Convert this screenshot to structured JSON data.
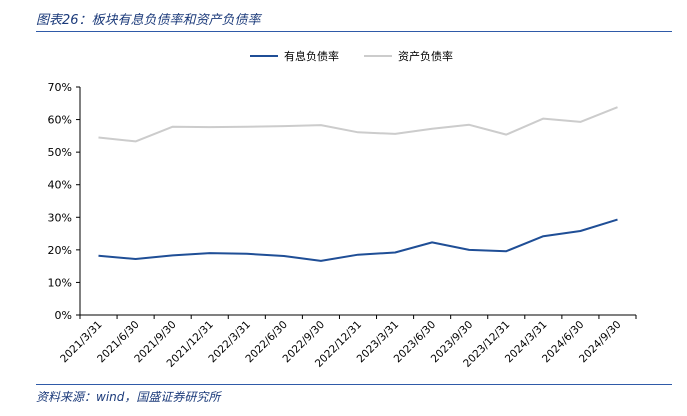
{
  "figure": {
    "title": "图表26：板块有息负债率和资产负债率",
    "source": "资料来源：wind，国盛证券研究所"
  },
  "colors": {
    "accent": "#2f5aa8",
    "series_interest_debt": "#1f4e96",
    "series_asset_liability": "#cccccc"
  },
  "chart_data": {
    "type": "line",
    "title": "",
    "xlabel": "",
    "ylabel": "",
    "legend_position": "top-center",
    "grid": false,
    "ylim": [
      0,
      70
    ],
    "yticks": [
      0,
      10,
      20,
      30,
      40,
      50,
      60,
      70
    ],
    "ytick_labels": [
      "0%",
      "10%",
      "20%",
      "30%",
      "40%",
      "50%",
      "60%",
      "70%"
    ],
    "categories": [
      "2021/3/31",
      "2021/6/30",
      "2021/9/30",
      "2021/12/31",
      "2022/3/31",
      "2022/6/30",
      "2022/9/30",
      "2022/12/31",
      "2023/3/31",
      "2023/6/30",
      "2023/9/30",
      "2023/12/31",
      "2024/3/31",
      "2024/6/30",
      "2024/9/30"
    ],
    "series": [
      {
        "name": "有息负债率",
        "color": "#1f4e96",
        "values": [
          18.2,
          17.2,
          18.3,
          19.0,
          18.8,
          18.1,
          16.6,
          18.5,
          19.2,
          22.3,
          20.0,
          19.6,
          24.2,
          25.8,
          29.3
        ]
      },
      {
        "name": "资产负债率",
        "color": "#cccccc",
        "values": [
          54.5,
          53.3,
          57.8,
          57.7,
          57.8,
          58.0,
          58.3,
          56.1,
          55.6,
          57.2,
          58.4,
          55.4,
          60.3,
          59.3,
          63.8
        ]
      }
    ]
  }
}
